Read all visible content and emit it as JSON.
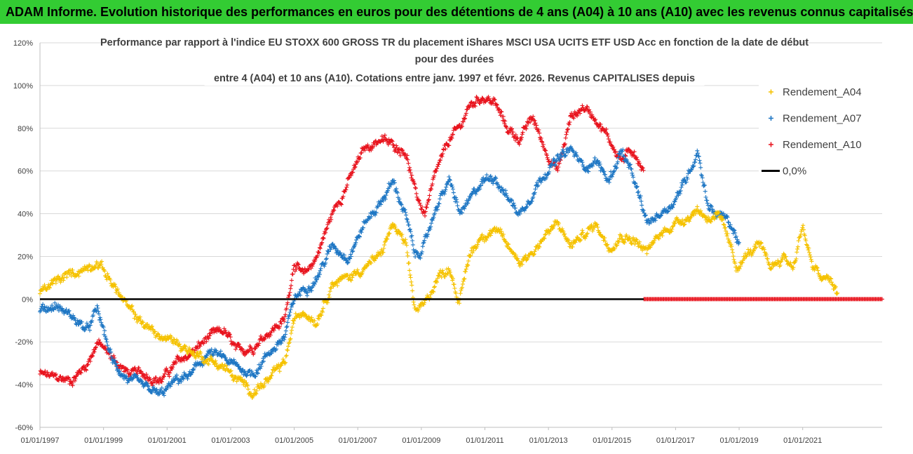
{
  "header": {
    "banner_text": "ADAM Informe. Evolution historique des performances en euros pour des détentions de 4 ans (A04) à 10 ans (A10) avec les revenus connus capitalisés"
  },
  "colors": {
    "banner": "#33cc33",
    "A04": "#f5c200",
    "A07": "#1f77c4",
    "A10": "#e8141e",
    "zero_line": "#000000",
    "grid": "#d9d9d9"
  },
  "chart_data": {
    "type": "scatter",
    "title_lines": [
      "Performance par rapport à l'indice EU STOXX 600 GROSS TR  du placement iShares MSCI USA UCITS ETF USD Acc en fonction de la date de début",
      "pour des durées",
      "entre 4 (A04) et 10 ans (A10). Cotations entre janv. 1997 et févr. 2026. Revenus CAPITALISES depuis"
    ],
    "xlabel": "",
    "ylabel": "",
    "x_tick_labels": [
      "01/01/1997",
      "01/01/1999",
      "01/01/2001",
      "01/01/2003",
      "01/01/2005",
      "01/01/2007",
      "01/01/2009",
      "01/01/2011",
      "01/01/2013",
      "01/01/2015",
      "01/01/2017",
      "01/01/2019",
      "01/01/2021"
    ],
    "y_tick_labels": [
      "120%",
      "100%",
      "80%",
      "60%",
      "40%",
      "20%",
      "0%",
      "-20%",
      "-40%",
      "-60%"
    ],
    "xlim": [
      1997.0,
      2023.5
    ],
    "ylim": [
      -60,
      120
    ],
    "grid": "horizontal",
    "legend_position": "right",
    "marker": "+",
    "series": [
      {
        "name": "Rendement_A04",
        "x": [
          1997.0,
          1997.5,
          1998.0,
          1998.5,
          1998.8,
          1999.3,
          1999.8,
          2000.3,
          2000.8,
          2001.3,
          2001.8,
          2002.3,
          2002.8,
          2003.2,
          2003.7,
          2004.2,
          2004.7,
          2005.0,
          2005.3,
          2005.7,
          2006.2,
          2006.7,
          2007.2,
          2007.7,
          2008.1,
          2008.5,
          2008.8,
          2009.1,
          2009.5,
          2009.9,
          2010.2,
          2010.5,
          2010.9,
          2011.3,
          2011.7,
          2012.1,
          2012.5,
          2012.9,
          2013.3,
          2013.7,
          2014.1,
          2014.5,
          2014.9,
          2015.3,
          2015.7,
          2016.1,
          2016.5,
          2016.9,
          2017.3,
          2017.7,
          2018.0,
          2018.3,
          2018.6,
          2018.9,
          2019.2,
          2019.6,
          2020.0,
          2020.4,
          2020.7,
          2021.0,
          2021.3,
          2021.6,
          2021.9,
          2022.1
        ],
        "values": [
          3,
          8,
          12,
          15,
          18,
          7,
          -5,
          -12,
          -18,
          -20,
          -25,
          -28,
          -32,
          -38,
          -43,
          -38,
          -30,
          -10,
          -5,
          -10,
          8,
          10,
          15,
          20,
          35,
          25,
          -5,
          -3,
          10,
          15,
          -2,
          20,
          30,
          33,
          25,
          18,
          22,
          30,
          35,
          25,
          30,
          35,
          25,
          30,
          28,
          22,
          30,
          35,
          38,
          42,
          38,
          40,
          30,
          15,
          20,
          25,
          15,
          20,
          15,
          35,
          15,
          10,
          8,
          2
        ]
      },
      {
        "name": "Rendement_A07",
        "x": [
          1997.0,
          1997.5,
          1998.0,
          1998.5,
          1998.8,
          1999.3,
          1999.8,
          2000.3,
          2000.8,
          2001.3,
          2001.8,
          2002.3,
          2002.8,
          2003.2,
          2003.7,
          2004.2,
          2004.7,
          2005.0,
          2005.3,
          2005.7,
          2006.2,
          2006.7,
          2007.2,
          2007.7,
          2008.1,
          2008.5,
          2008.8,
          2009.1,
          2009.5,
          2009.9,
          2010.2,
          2010.5,
          2010.9,
          2011.3,
          2011.7,
          2012.1,
          2012.5,
          2012.9,
          2013.3,
          2013.7,
          2014.1,
          2014.5,
          2014.9,
          2015.3,
          2015.7,
          2016.1,
          2016.5,
          2016.9,
          2017.3,
          2017.7,
          2018.0,
          2018.3,
          2018.6,
          2018.9,
          2019.0
        ],
        "values": [
          -5,
          -3,
          -8,
          -15,
          -5,
          -30,
          -38,
          -42,
          -45,
          -38,
          -35,
          -25,
          -28,
          -32,
          -35,
          -25,
          -18,
          0,
          5,
          10,
          25,
          20,
          35,
          45,
          55,
          40,
          20,
          25,
          45,
          55,
          40,
          45,
          55,
          58,
          48,
          40,
          50,
          60,
          65,
          70,
          62,
          65,
          55,
          70,
          55,
          35,
          40,
          45,
          55,
          70,
          45,
          40,
          38,
          30,
          25
        ]
      },
      {
        "name": "Rendement_A10",
        "x": [
          1997.0,
          1997.5,
          1998.0,
          1998.5,
          1998.8,
          1999.3,
          1999.8,
          2000.3,
          2000.8,
          2001.3,
          2001.8,
          2002.3,
          2002.8,
          2003.2,
          2003.7,
          2004.2,
          2004.7,
          2005.0,
          2005.3,
          2005.7,
          2006.2,
          2006.7,
          2007.2,
          2007.7,
          2008.1,
          2008.5,
          2008.8,
          2009.1,
          2009.5,
          2009.9,
          2010.2,
          2010.5,
          2010.9,
          2011.3,
          2011.7,
          2012.1,
          2012.5,
          2012.9,
          2013.3,
          2013.7,
          2014.1,
          2014.5,
          2014.9,
          2015.3,
          2015.7,
          2016.0
        ],
        "values": [
          -35,
          -37,
          -38,
          -30,
          -20,
          -28,
          -35,
          -35,
          -38,
          -30,
          -25,
          -18,
          -15,
          -25,
          -22,
          -15,
          -10,
          18,
          10,
          20,
          40,
          55,
          70,
          75,
          72,
          70,
          50,
          40,
          60,
          75,
          80,
          90,
          95,
          92,
          80,
          75,
          85,
          70,
          60,
          85,
          90,
          85,
          75,
          65,
          70,
          60
        ]
      },
      {
        "name": "0,0%",
        "x": [
          1997.0,
          2023.5
        ],
        "values": [
          0,
          0
        ]
      }
    ],
    "a10_zero_tail": [
      2016.0,
      2023.5
    ]
  }
}
